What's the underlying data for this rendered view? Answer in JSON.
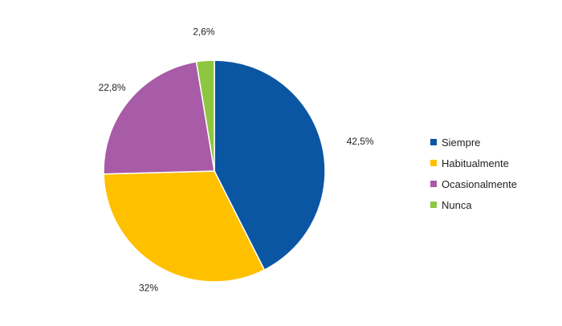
{
  "chart_data": {
    "type": "pie",
    "categories": [
      "Siempre",
      "Habitualmente",
      "Ocasionalmente",
      "Nunca"
    ],
    "values": [
      42.5,
      32,
      22.8,
      2.6
    ],
    "value_labels": [
      "42,5%",
      "32%",
      "22,8%",
      "2,6%"
    ],
    "colors": [
      "#0b56a3",
      "#ffc000",
      "#a85ba6",
      "#8dc63f"
    ],
    "start_angle_deg": 0,
    "direction": "clockwise",
    "legend_position": "right",
    "grid": false
  }
}
